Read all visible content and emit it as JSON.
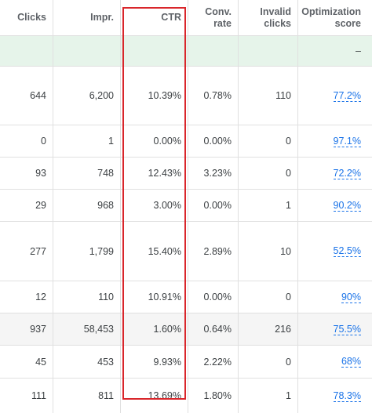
{
  "headers": {
    "clicks": "Clicks",
    "impr": "Impr.",
    "ctr": "CTR",
    "conv_rate": "Conv. rate",
    "invalid_clicks_1": "Invalid",
    "invalid_clicks_2": "clicks",
    "opt_score_1": "Optimization",
    "opt_score_2": "score"
  },
  "total_row": {
    "opt_score": "–"
  },
  "rows": [
    {
      "clicks": "644",
      "impr": "6,200",
      "ctr": "10.39%",
      "conv_rate": "0.78%",
      "invalid_clicks": "110",
      "opt_score": "77.2%"
    },
    {
      "clicks": "0",
      "impr": "1",
      "ctr": "0.00%",
      "conv_rate": "0.00%",
      "invalid_clicks": "0",
      "opt_score": "97.1%"
    },
    {
      "clicks": "93",
      "impr": "748",
      "ctr": "12.43%",
      "conv_rate": "3.23%",
      "invalid_clicks": "0",
      "opt_score": "72.2%"
    },
    {
      "clicks": "29",
      "impr": "968",
      "ctr": "3.00%",
      "conv_rate": "0.00%",
      "invalid_clicks": "1",
      "opt_score": "90.2%"
    },
    {
      "clicks": "277",
      "impr": "1,799",
      "ctr": "15.40%",
      "conv_rate": "2.89%",
      "invalid_clicks": "10",
      "opt_score": "52.5%"
    },
    {
      "clicks": "12",
      "impr": "110",
      "ctr": "10.91%",
      "conv_rate": "0.00%",
      "invalid_clicks": "0",
      "opt_score": "90%"
    },
    {
      "clicks": "937",
      "impr": "58,453",
      "ctr": "1.60%",
      "conv_rate": "0.64%",
      "invalid_clicks": "216",
      "opt_score": "75.5%"
    },
    {
      "clicks": "45",
      "impr": "453",
      "ctr": "9.93%",
      "conv_rate": "2.22%",
      "invalid_clicks": "0",
      "opt_score": "68%"
    },
    {
      "clicks": "111",
      "impr": "811",
      "ctr": "13.69%",
      "conv_rate": "1.80%",
      "invalid_clicks": "1",
      "opt_score": "78.3%"
    }
  ],
  "colors": {
    "highlight": "#d9262b",
    "link": "#1a73e8",
    "total_bg": "#e6f4ea"
  }
}
